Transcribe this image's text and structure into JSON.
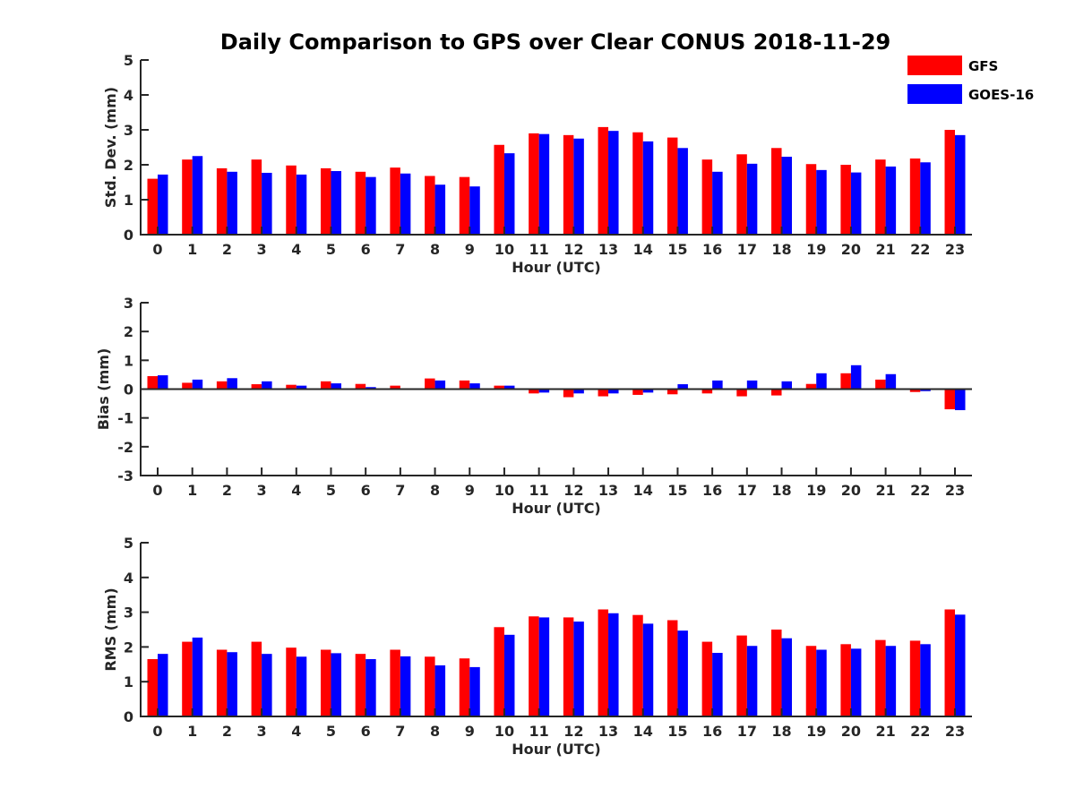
{
  "title": "Daily Comparison to GPS over Clear CONUS 2018-11-29",
  "legend": {
    "placement": "top-right",
    "entries": [
      "GFS",
      "GOES-16"
    ]
  },
  "colors": {
    "GFS": "#ff0000",
    "GOES-16": "#0000ff",
    "axis": "#262626"
  },
  "chart_data": [
    {
      "type": "bar",
      "title": "Daily Comparison to GPS over Clear CONUS 2018-11-29",
      "xlabel": "Hour (UTC)",
      "ylabel": "Std. Dev. (mm)",
      "ylim": [
        0,
        5
      ],
      "yticks": [
        "0",
        "1",
        "2",
        "3",
        "4",
        "5"
      ],
      "categories": [
        "0",
        "1",
        "2",
        "3",
        "4",
        "5",
        "6",
        "7",
        "8",
        "9",
        "10",
        "11",
        "12",
        "13",
        "14",
        "15",
        "16",
        "17",
        "18",
        "19",
        "20",
        "21",
        "22",
        "23"
      ],
      "series": [
        {
          "name": "GFS",
          "values": [
            1.6,
            2.15,
            1.9,
            2.15,
            1.98,
            1.9,
            1.8,
            1.92,
            1.68,
            1.65,
            2.57,
            2.9,
            2.85,
            3.08,
            2.93,
            2.78,
            2.15,
            2.3,
            2.48,
            2.02,
            2.0,
            2.15,
            2.18,
            3.0
          ]
        },
        {
          "name": "GOES-16",
          "values": [
            1.72,
            2.25,
            1.8,
            1.77,
            1.72,
            1.82,
            1.65,
            1.75,
            1.43,
            1.38,
            2.33,
            2.88,
            2.75,
            2.97,
            2.67,
            2.48,
            1.8,
            2.03,
            2.23,
            1.85,
            1.78,
            1.95,
            2.07,
            2.85
          ]
        }
      ]
    },
    {
      "type": "bar",
      "xlabel": "Hour (UTC)",
      "ylabel": "Bias (mm)",
      "ylim": [
        -3,
        3
      ],
      "yticks": [
        "-3",
        "-2",
        "-1",
        "0",
        "1",
        "2",
        "3"
      ],
      "categories": [
        "0",
        "1",
        "2",
        "3",
        "4",
        "5",
        "6",
        "7",
        "8",
        "9",
        "10",
        "11",
        "12",
        "13",
        "14",
        "15",
        "16",
        "17",
        "18",
        "19",
        "20",
        "21",
        "22",
        "23"
      ],
      "series": [
        {
          "name": "GFS",
          "values": [
            0.45,
            0.22,
            0.27,
            0.17,
            0.15,
            0.27,
            0.18,
            0.12,
            0.37,
            0.3,
            0.12,
            -0.15,
            -0.28,
            -0.25,
            -0.2,
            -0.18,
            -0.15,
            -0.25,
            -0.22,
            0.18,
            0.55,
            0.33,
            -0.1,
            -0.7
          ]
        },
        {
          "name": "GOES-16",
          "values": [
            0.48,
            0.33,
            0.38,
            0.27,
            0.12,
            0.2,
            0.07,
            0.03,
            0.3,
            0.2,
            0.12,
            -0.12,
            -0.15,
            -0.15,
            -0.12,
            0.17,
            0.3,
            0.3,
            0.27,
            0.55,
            0.83,
            0.52,
            -0.07,
            -0.73
          ]
        }
      ]
    },
    {
      "type": "bar",
      "xlabel": "Hour (UTC)",
      "ylabel": "RMS (mm)",
      "ylim": [
        0,
        5
      ],
      "yticks": [
        "0",
        "1",
        "2",
        "3",
        "4",
        "5"
      ],
      "categories": [
        "0",
        "1",
        "2",
        "3",
        "4",
        "5",
        "6",
        "7",
        "8",
        "9",
        "10",
        "11",
        "12",
        "13",
        "14",
        "15",
        "16",
        "17",
        "18",
        "19",
        "20",
        "21",
        "22",
        "23"
      ],
      "series": [
        {
          "name": "GFS",
          "values": [
            1.65,
            2.15,
            1.92,
            2.15,
            1.98,
            1.92,
            1.8,
            1.92,
            1.72,
            1.67,
            2.57,
            2.88,
            2.85,
            3.08,
            2.92,
            2.77,
            2.15,
            2.33,
            2.5,
            2.03,
            2.08,
            2.2,
            2.18,
            3.08
          ]
        },
        {
          "name": "GOES-16",
          "values": [
            1.8,
            2.27,
            1.85,
            1.8,
            1.72,
            1.82,
            1.65,
            1.73,
            1.47,
            1.42,
            2.35,
            2.85,
            2.73,
            2.97,
            2.67,
            2.47,
            1.83,
            2.03,
            2.25,
            1.92,
            1.95,
            2.03,
            2.08,
            2.93
          ]
        }
      ]
    }
  ]
}
